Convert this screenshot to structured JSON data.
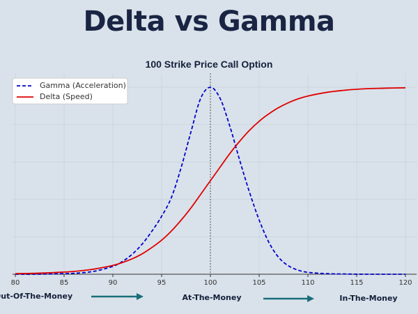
{
  "header": {
    "title": "Delta vs Gamma"
  },
  "chart_data": {
    "type": "line",
    "title": "100 Strike Price Call Option",
    "xlabel": "",
    "ylabel": "",
    "xlim": [
      79,
      122
    ],
    "x_ticks": [
      80,
      85,
      90,
      95,
      100,
      105,
      110,
      115,
      120
    ],
    "strike": 100,
    "legend_position": "top-left",
    "grid": true,
    "series": [
      {
        "name": "Gamma (Acceleration)",
        "style": "dashed",
        "color": "#0000cc",
        "x": [
          80,
          82,
          84,
          86,
          88,
          90,
          91,
          92,
          93,
          94,
          95,
          96,
          97,
          98,
          99,
          100,
          101,
          102,
          103,
          104,
          105,
          106,
          107,
          108,
          109,
          110,
          112,
          114,
          116,
          118,
          120
        ],
        "values": [
          0,
          0,
          0.002,
          0.005,
          0.015,
          0.042,
          0.069,
          0.108,
          0.161,
          0.23,
          0.31,
          0.41,
          0.57,
          0.76,
          0.94,
          1.0,
          0.94,
          0.79,
          0.61,
          0.44,
          0.29,
          0.17,
          0.09,
          0.045,
          0.022,
          0.01,
          0.003,
          0.001,
          0,
          0,
          0
        ]
      },
      {
        "name": "Delta (Speed)",
        "style": "solid",
        "color": "#e00000",
        "x": [
          80,
          82,
          84,
          86,
          88,
          90,
          91,
          92,
          93,
          94,
          95,
          96,
          97,
          98,
          99,
          100,
          101,
          102,
          103,
          104,
          105,
          106,
          107,
          108,
          109,
          110,
          112,
          114,
          116,
          118,
          120
        ],
        "values": [
          0.003,
          0.005,
          0.009,
          0.015,
          0.027,
          0.047,
          0.063,
          0.083,
          0.109,
          0.143,
          0.182,
          0.231,
          0.289,
          0.354,
          0.427,
          0.5,
          0.573,
          0.646,
          0.711,
          0.769,
          0.818,
          0.858,
          0.891,
          0.917,
          0.938,
          0.953,
          0.973,
          0.985,
          0.992,
          0.995,
          0.997
        ]
      }
    ]
  },
  "regions": {
    "otm": "Out-Of-The-Money",
    "atm": "At-The-Money",
    "itm": "In-The-Money"
  }
}
